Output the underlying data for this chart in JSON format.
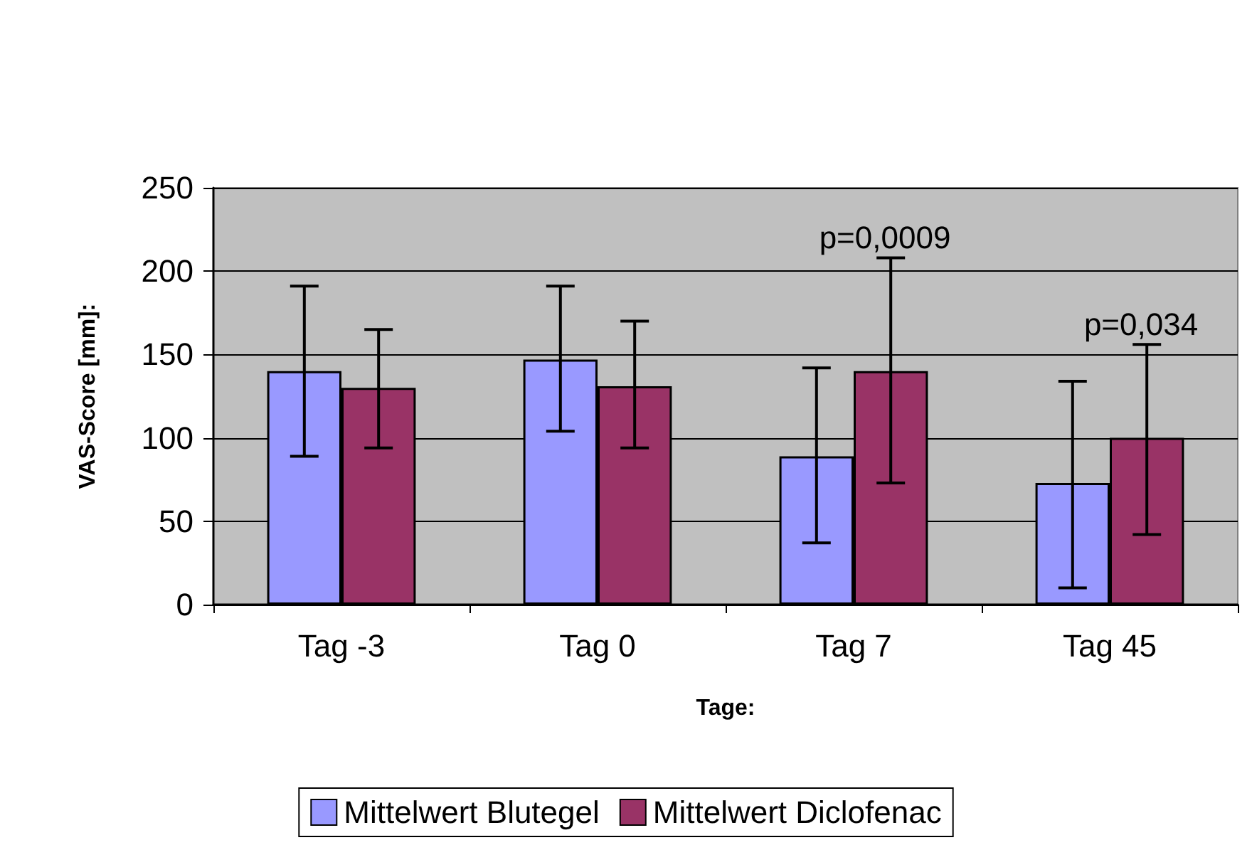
{
  "chart_data": {
    "type": "bar",
    "xlabel": "Tage:",
    "ylabel": "VAS-Score [mm]:",
    "categories": [
      "Tag -3",
      "Tag 0",
      "Tag 7",
      "Tag 45"
    ],
    "series": [
      {
        "name": "Mittelwert Blutegel",
        "color": "#9999ff",
        "values": [
          140,
          147,
          89,
          73
        ],
        "errors": [
          [
            89,
            191
          ],
          [
            104,
            191
          ],
          [
            37,
            142
          ],
          [
            10,
            134
          ]
        ]
      },
      {
        "name": "Mittelwert Diclofenac",
        "color": "#993366",
        "values": [
          130,
          131,
          140,
          100
        ],
        "errors": [
          [
            94,
            165
          ],
          [
            94,
            170
          ],
          [
            73,
            208
          ],
          [
            42,
            156
          ]
        ]
      }
    ],
    "ylim": [
      0,
      250
    ],
    "yticks": [
      0,
      50,
      100,
      150,
      200,
      250
    ],
    "grid": "y",
    "legend": "bottom",
    "annotations": [
      "p=0,0009",
      "p=0,034"
    ]
  }
}
